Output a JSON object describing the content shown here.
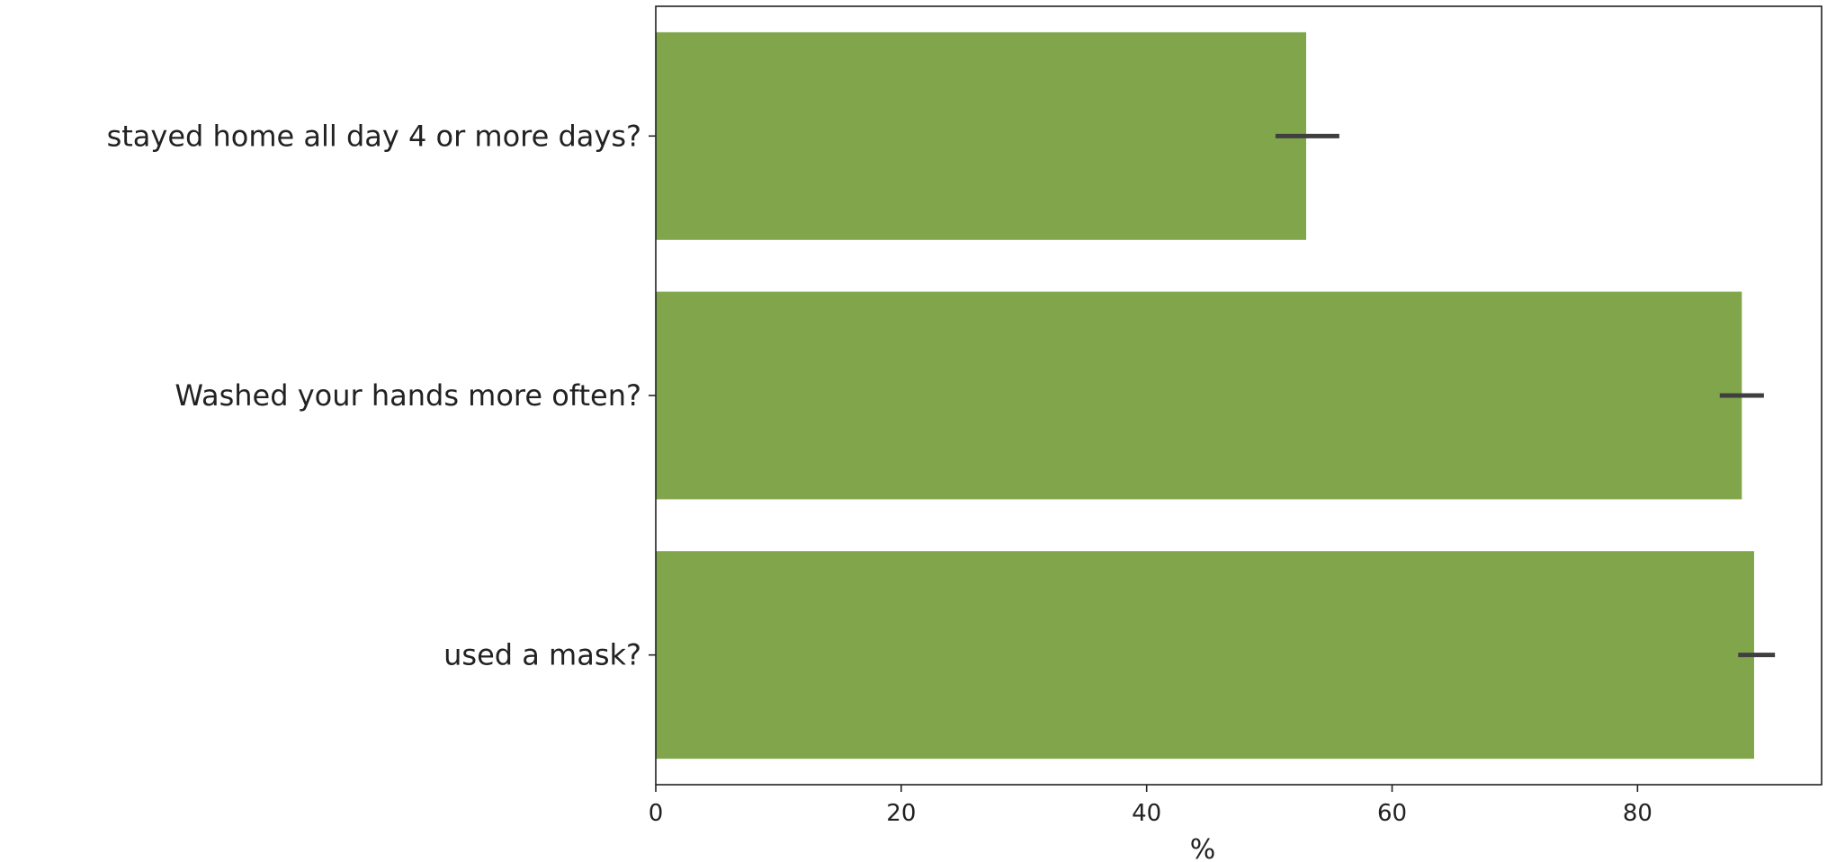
{
  "chart_data": {
    "type": "bar",
    "orientation": "horizontal",
    "title": "",
    "xlabel": "%",
    "ylabel": "",
    "xlim": [
      0,
      95
    ],
    "x_ticks": [
      0,
      20,
      40,
      60,
      80
    ],
    "x_tick_labels": [
      "0",
      "20",
      "40",
      "60",
      "80"
    ],
    "grid": false,
    "categories": [
      "stayed home all day 4 or more days?",
      "Washed your hands more often?",
      "used a mask?"
    ],
    "values": [
      53.0,
      88.5,
      89.5
    ],
    "error_bars": [
      [
        50.5,
        55.7
      ],
      [
        86.7,
        90.3
      ],
      [
        88.2,
        91.2
      ]
    ],
    "colors": {
      "bar": "#80a54b",
      "error_bar": "#3f3f3f",
      "axis": "#222222"
    }
  }
}
